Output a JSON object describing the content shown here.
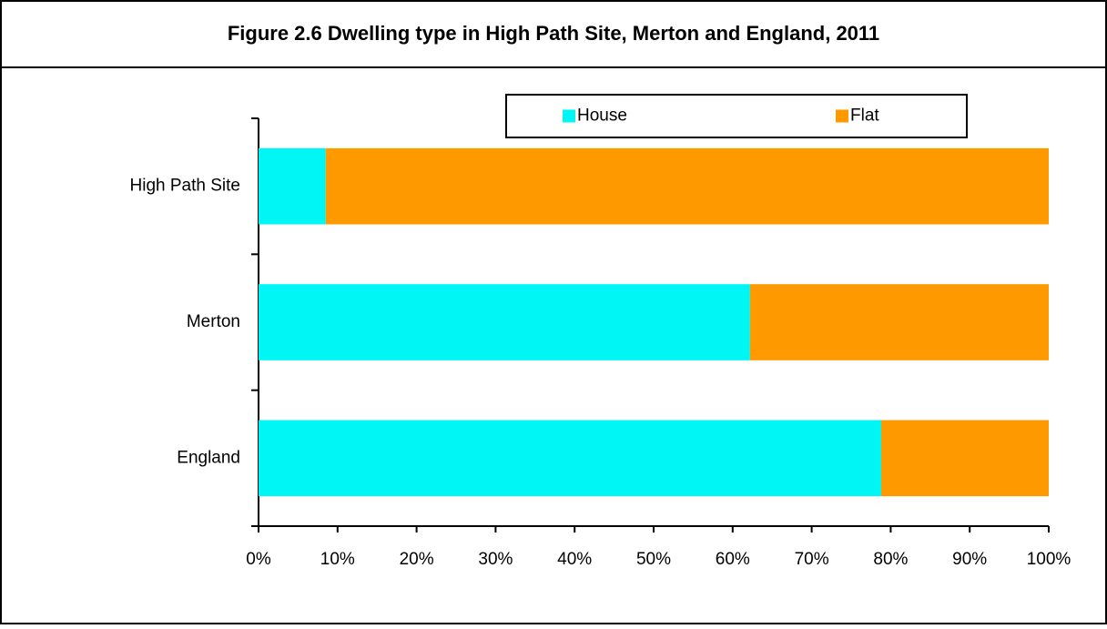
{
  "chart_data": {
    "type": "stacked-barh",
    "title": "Figure 2.6 Dwelling type in High Path Site, Merton and England, 2011",
    "categories": [
      "High Path Site",
      "Merton",
      "England"
    ],
    "series": [
      {
        "name": "House",
        "color": "#00f5f5",
        "values": [
          8.5,
          62.2,
          78.8
        ]
      },
      {
        "name": "Flat",
        "color": "#ff9900",
        "values": [
          91.5,
          37.8,
          21.2
        ]
      }
    ],
    "xlim": [
      0,
      100
    ],
    "xticks": [
      {
        "value": 0,
        "label": "0%"
      },
      {
        "value": 10,
        "label": "10%"
      },
      {
        "value": 20,
        "label": "20%"
      },
      {
        "value": 30,
        "label": "30%"
      },
      {
        "value": 40,
        "label": "40%"
      },
      {
        "value": 50,
        "label": "50%"
      },
      {
        "value": 60,
        "label": "60%"
      },
      {
        "value": 70,
        "label": "70%"
      },
      {
        "value": 80,
        "label": "80%"
      },
      {
        "value": 90,
        "label": "90%"
      },
      {
        "value": 100,
        "label": "100%"
      }
    ],
    "legend": "top"
  }
}
